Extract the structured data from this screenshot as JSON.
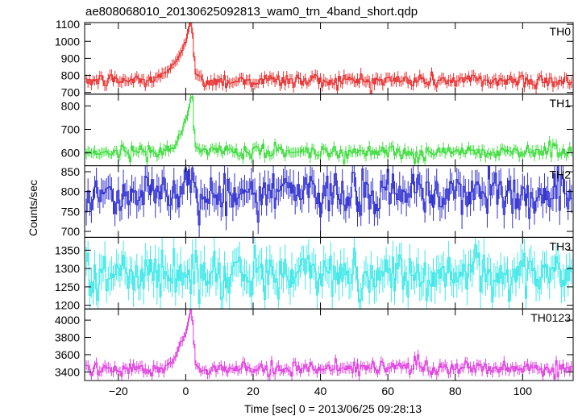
{
  "chart_data": {
    "type": "line",
    "title": "ae808068010_20130625092813_wam0_trn_4band_short.qdp",
    "xlabel": "Time [sec] 0 = 2013/06/25 09:28:13",
    "ylabel": "Counts/sec",
    "xlim": [
      -30,
      115
    ],
    "x_ticks": [
      -20,
      0,
      20,
      40,
      60,
      80,
      100
    ],
    "x_tick_labels": [
      "−20",
      "0",
      "20",
      "40",
      "60",
      "80",
      "100"
    ],
    "grid": false,
    "bin_width": 0.5,
    "panels": [
      {
        "name": "TH0",
        "color": "#e83030",
        "ylim": [
          690,
          1110
        ],
        "y_ticks": [
          700,
          800,
          900,
          1000,
          1100
        ],
        "baseline": 770,
        "noise": 22,
        "err": 30,
        "peak": [
          [
            -8,
            800
          ],
          [
            -5,
            830
          ],
          [
            -3,
            880
          ],
          [
            -2,
            920
          ],
          [
            -1,
            960
          ],
          [
            0,
            1000
          ],
          [
            0.5,
            1050
          ],
          [
            1,
            1080
          ],
          [
            1.5,
            1100
          ],
          [
            2,
            1060
          ],
          [
            2.5,
            900
          ],
          [
            3,
            820
          ],
          [
            4,
            790
          ]
        ],
        "features": [
          [
            -30,
            780
          ],
          [
            100,
            800
          ],
          [
            105,
            790
          ]
        ]
      },
      {
        "name": "TH1",
        "color": "#3cdc3c",
        "ylim": [
          545,
          850
        ],
        "y_ticks": [
          600,
          700,
          800
        ],
        "baseline": 605,
        "noise": 14,
        "err": 20,
        "peak": [
          [
            -5,
            610
          ],
          [
            -3,
            630
          ],
          [
            -2,
            670
          ],
          [
            -1,
            700
          ],
          [
            0,
            740
          ],
          [
            0.5,
            760
          ],
          [
            1,
            800
          ],
          [
            1.5,
            830
          ],
          [
            2,
            820
          ],
          [
            2.5,
            700
          ],
          [
            3,
            620
          ],
          [
            4,
            610
          ]
        ],
        "features": [
          [
            68,
            555
          ],
          [
            69,
            560
          ],
          [
            108,
            650
          ],
          [
            109,
            640
          ]
        ]
      },
      {
        "name": "TH2",
        "color": "#3030d0",
        "ylim": [
          685,
          865
        ],
        "y_ticks": [
          700,
          750,
          800,
          850
        ],
        "baseline": 795,
        "noise": 28,
        "err": 32,
        "peak": [],
        "features": [
          [
            0,
            860
          ],
          [
            1,
            855
          ],
          [
            2,
            860
          ]
        ]
      },
      {
        "name": "TH3",
        "color": "#40e8e8",
        "ylim": [
          1190,
          1385
        ],
        "y_ticks": [
          1200,
          1250,
          1300,
          1350
        ],
        "baseline": 1285,
        "noise": 30,
        "err": 40,
        "peak": [],
        "features": []
      },
      {
        "name": "TH0123",
        "color": "#e040e0",
        "ylim": [
          3300,
          4130
        ],
        "y_ticks": [
          3400,
          3600,
          3800,
          4000
        ],
        "baseline": 3440,
        "noise": 40,
        "err": 55,
        "peak": [
          [
            -6,
            3460
          ],
          [
            -4,
            3520
          ],
          [
            -3,
            3580
          ],
          [
            -2,
            3680
          ],
          [
            -1,
            3780
          ],
          [
            0,
            3860
          ],
          [
            0.5,
            3950
          ],
          [
            1,
            4050
          ],
          [
            1.5,
            4100
          ],
          [
            2,
            4000
          ],
          [
            2.5,
            3700
          ],
          [
            3,
            3500
          ],
          [
            4,
            3450
          ]
        ],
        "features": [
          [
            68,
            3580
          ],
          [
            69,
            3600
          ]
        ]
      }
    ]
  }
}
